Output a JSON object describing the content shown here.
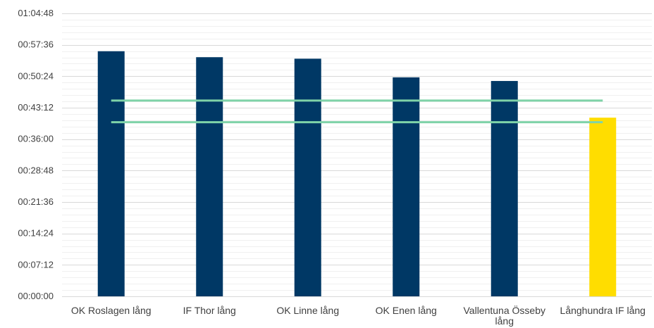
{
  "chart_data": {
    "type": "bar",
    "categories": [
      [
        "OK Roslagen lång"
      ],
      [
        "IF Thor lång"
      ],
      [
        "OK Linne lång"
      ],
      [
        "OK Enen lång"
      ],
      [
        "Vallentuna Össeby",
        "lång"
      ],
      [
        "Långhundra IF lång"
      ]
    ],
    "values": [
      "00:56:08",
      "00:54:46",
      "00:54:25",
      "00:50:09",
      "00:49:19",
      "00:40:55"
    ],
    "bar_colors": [
      "#003865",
      "#003865",
      "#003865",
      "#003865",
      "#003865",
      "#FFDD00"
    ],
    "reference_lines": [
      "00:44:50",
      "00:39:52"
    ],
    "reference_line_color": "#7FD3A8",
    "ylim": [
      "00:00:00",
      "01:04:48"
    ],
    "y_ticks": [
      "00:00:00",
      "00:07:12",
      "00:14:24",
      "00:21:36",
      "00:28:48",
      "00:36:00",
      "00:43:12",
      "00:50:24",
      "00:57:36",
      "01:04:48"
    ],
    "minor_gridlines_per_major": 5,
    "grid": true,
    "legend": "none"
  }
}
